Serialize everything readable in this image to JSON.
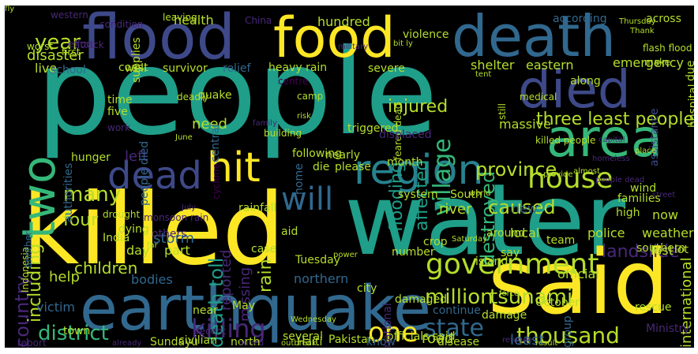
{
  "palette": {
    "yellow": "#fde725",
    "lime": "#b5de2b",
    "green": "#6ece58",
    "sea": "#35b779",
    "teal": "#1f9e89",
    "cyan": "#26828e",
    "blue": "#31688e",
    "indigo": "#3e4989",
    "purple": "#482878",
    "violet": "#440154"
  },
  "words": [
    {
      "text": "people",
      "color": "teal"
    },
    {
      "text": "water",
      "color": "teal"
    },
    {
      "text": "killed",
      "color": "yellow"
    },
    {
      "text": "earthquake",
      "color": "blue"
    },
    {
      "text": "said",
      "color": "yellow"
    },
    {
      "text": "flood",
      "color": "indigo"
    },
    {
      "text": "food",
      "color": "yellow"
    },
    {
      "text": "death",
      "color": "blue"
    },
    {
      "text": "died",
      "color": "indigo"
    },
    {
      "text": "area",
      "color": "sea"
    },
    {
      "text": "two",
      "color": "sea"
    },
    {
      "text": "region",
      "color": "cyan"
    },
    {
      "text": "dead",
      "color": "indigo"
    },
    {
      "text": "hit",
      "color": "yellow"
    },
    {
      "text": "house",
      "color": "lime"
    },
    {
      "text": "will",
      "color": "blue"
    },
    {
      "text": "government",
      "color": "lime"
    },
    {
      "text": "district",
      "color": "sea"
    },
    {
      "text": "thousand",
      "color": "lime"
    },
    {
      "text": "killing",
      "color": "purple"
    },
    {
      "text": "state",
      "color": "blue"
    },
    {
      "text": "one",
      "color": "yellow"
    },
    {
      "text": "village",
      "color": "sea"
    },
    {
      "text": "injured",
      "color": "lime"
    },
    {
      "text": "year",
      "color": "lime"
    },
    {
      "text": "many",
      "color": "lime"
    },
    {
      "text": "country",
      "color": "purple"
    },
    {
      "text": "destroyed",
      "color": "sea"
    },
    {
      "text": "three least people",
      "color": "lime"
    },
    {
      "text": "death toll",
      "color": "teal"
    },
    {
      "text": "province",
      "color": "lime"
    },
    {
      "text": "caused",
      "color": "lime"
    },
    {
      "text": "landslide",
      "color": "purple"
    },
    {
      "text": "million",
      "color": "lime"
    },
    {
      "text": "tsunami",
      "color": "lime"
    },
    {
      "text": "including",
      "color": "lime"
    },
    {
      "text": "four",
      "color": "lime"
    },
    {
      "text": "affected",
      "color": "teal"
    },
    {
      "text": "flooding",
      "color": "teal"
    },
    {
      "text": "rain",
      "color": "lime"
    },
    {
      "text": "disaster",
      "color": "lime"
    },
    {
      "text": "health",
      "color": "lime"
    },
    {
      "text": "live",
      "color": "lime"
    },
    {
      "text": "hundred",
      "color": "lime"
    },
    {
      "text": "need",
      "color": "lime"
    },
    {
      "text": "left",
      "color": "purple"
    },
    {
      "text": "storm",
      "color": "blue"
    },
    {
      "text": "children",
      "color": "lime"
    },
    {
      "text": "bodies",
      "color": "blue"
    },
    {
      "text": "help",
      "color": "lime"
    },
    {
      "text": "victim",
      "color": "blue"
    },
    {
      "text": "river",
      "color": "lime"
    },
    {
      "text": "road",
      "color": "lime"
    },
    {
      "text": "least",
      "color": "blue"
    },
    {
      "text": "northern",
      "color": "blue"
    },
    {
      "text": "missing",
      "color": "purple"
    },
    {
      "text": "reported",
      "color": "purple"
    },
    {
      "text": "part",
      "color": "lime"
    },
    {
      "text": "day",
      "color": "lime"
    },
    {
      "text": "official",
      "color": "lime"
    },
    {
      "text": "international",
      "color": "lime"
    },
    {
      "text": "massive",
      "color": "lime"
    },
    {
      "text": "local",
      "color": "lime"
    },
    {
      "text": "new",
      "color": "blue"
    },
    {
      "text": "police",
      "color": "lime"
    },
    {
      "text": "weather",
      "color": "lime"
    },
    {
      "text": "lost",
      "color": "lime"
    },
    {
      "text": "now",
      "color": "lime"
    },
    {
      "text": "emergency",
      "color": "lime"
    },
    {
      "text": "shelter",
      "color": "lime"
    },
    {
      "text": "eastern",
      "color": "lime"
    },
    {
      "text": "hospital",
      "color": "lime"
    },
    {
      "text": "assistance",
      "color": "indigo"
    },
    {
      "text": "due",
      "color": "lime"
    },
    {
      "text": "according",
      "color": "blue"
    },
    {
      "text": "across",
      "color": "lime"
    },
    {
      "text": "heavy rain",
      "color": "lime"
    },
    {
      "text": "severe",
      "color": "lime"
    },
    {
      "text": "well",
      "color": "lime"
    },
    {
      "text": "survivor",
      "color": "lime"
    },
    {
      "text": "relief",
      "color": "blue"
    },
    {
      "text": "coast",
      "color": "lime"
    },
    {
      "text": "school",
      "color": "blue"
    },
    {
      "text": "quake",
      "color": "lime"
    },
    {
      "text": "central",
      "color": "blue"
    },
    {
      "text": "cyclone",
      "color": "violet"
    },
    {
      "text": "people died",
      "color": "blue"
    },
    {
      "text": "time",
      "color": "lime"
    },
    {
      "text": "five",
      "color": "lime"
    },
    {
      "text": "work",
      "color": "purple"
    },
    {
      "text": "authorities",
      "color": "blue"
    },
    {
      "text": "hunger",
      "color": "lime"
    },
    {
      "text": "home",
      "color": "blue"
    },
    {
      "text": "following",
      "color": "lime"
    },
    {
      "text": "nearly",
      "color": "lime"
    },
    {
      "text": "please",
      "color": "lime"
    },
    {
      "text": "die",
      "color": "lime"
    },
    {
      "text": "rainfall",
      "color": "lime"
    },
    {
      "text": "monsoon rain",
      "color": "purple"
    },
    {
      "text": "drought",
      "color": "lime"
    },
    {
      "text": "dying",
      "color": "lime"
    },
    {
      "text": "others",
      "color": "purple"
    },
    {
      "text": "India",
      "color": "lime"
    },
    {
      "text": "Indonesia",
      "color": "lime"
    },
    {
      "text": "another",
      "color": "blue"
    },
    {
      "text": "aid",
      "color": "lime"
    },
    {
      "text": "case",
      "color": "lime"
    },
    {
      "text": "Tuesday",
      "color": "lime"
    },
    {
      "text": "May",
      "color": "lime"
    },
    {
      "text": "near",
      "color": "lime"
    },
    {
      "text": "recent",
      "color": "purple"
    },
    {
      "text": "civilian",
      "color": "lime"
    },
    {
      "text": "Sunday",
      "color": "lime"
    },
    {
      "text": "u",
      "color": "lime"
    },
    {
      "text": "north",
      "color": "lime"
    },
    {
      "text": "several",
      "color": "lime"
    },
    {
      "text": "Haiti",
      "color": "lime"
    },
    {
      "text": "Pakistan",
      "color": "lime"
    },
    {
      "text": "know",
      "color": "blue"
    },
    {
      "text": "disease",
      "color": "lime"
    },
    {
      "text": "officials said",
      "color": "lime"
    },
    {
      "text": "report",
      "color": "purple"
    },
    {
      "text": "town",
      "color": "lime"
    },
    {
      "text": "damaged",
      "color": "lime"
    },
    {
      "text": "city",
      "color": "lime"
    },
    {
      "text": "continue",
      "color": "blue"
    },
    {
      "text": "number",
      "color": "lime"
    },
    {
      "text": "system",
      "color": "lime"
    },
    {
      "text": "South",
      "color": "lime"
    },
    {
      "text": "crop",
      "color": "lime"
    },
    {
      "text": "island",
      "color": "lime"
    },
    {
      "text": "say",
      "color": "lime"
    },
    {
      "text": "team",
      "color": "lime"
    },
    {
      "text": "around",
      "color": "lime"
    },
    {
      "text": "rescue",
      "color": "lime"
    },
    {
      "text": "group",
      "color": "blue"
    },
    {
      "text": "damage",
      "color": "lime"
    },
    {
      "text": "October",
      "color": "lime"
    },
    {
      "text": "national",
      "color": "purple"
    },
    {
      "text": "Ministry",
      "color": "purple"
    },
    {
      "text": "wind",
      "color": "lime"
    },
    {
      "text": "families",
      "color": "lime"
    },
    {
      "text": "southern",
      "color": "lime"
    },
    {
      "text": "lot",
      "color": "lime"
    },
    {
      "text": "high",
      "color": "lime"
    },
    {
      "text": "along",
      "color": "lime"
    },
    {
      "text": "flash flood",
      "color": "lime"
    },
    {
      "text": "make",
      "color": "lime"
    },
    {
      "text": "medical",
      "color": "lime"
    },
    {
      "text": "still",
      "color": "lime"
    },
    {
      "text": "feared dead",
      "color": "lime"
    },
    {
      "text": "displaced",
      "color": "purple"
    },
    {
      "text": "triggered",
      "color": "lime"
    },
    {
      "text": "month",
      "color": "lime"
    },
    {
      "text": "killed people",
      "color": "lime"
    },
    {
      "text": "violence",
      "color": "lime"
    },
    {
      "text": "attack",
      "color": "purple"
    },
    {
      "text": "first",
      "color": "lime"
    },
    {
      "text": "worst",
      "color": "lime"
    },
    {
      "text": "effort",
      "color": "purple"
    },
    {
      "text": "supplies",
      "color": "lime"
    },
    {
      "text": "China",
      "color": "purple"
    },
    {
      "text": "leaving",
      "color": "lime"
    },
    {
      "text": "condition",
      "color": "purple"
    },
    {
      "text": "western",
      "color": "purple"
    },
    {
      "text": "Thursday",
      "color": "lime"
    },
    {
      "text": "Thank",
      "color": "lime"
    },
    {
      "text": "bit ly",
      "color": "lime"
    },
    {
      "text": "military",
      "color": "purple"
    },
    {
      "text": "tent",
      "color": "lime"
    },
    {
      "text": "centre",
      "color": "violet"
    },
    {
      "text": "camp",
      "color": "lime"
    },
    {
      "text": "risk",
      "color": "lime"
    },
    {
      "text": "deadly",
      "color": "lime"
    },
    {
      "text": "building",
      "color": "lime"
    },
    {
      "text": "family",
      "color": "purple"
    },
    {
      "text": "June",
      "color": "lime"
    },
    {
      "text": "capital",
      "color": "purple"
    },
    {
      "text": "homeless",
      "color": "purple"
    },
    {
      "text": "almost",
      "color": "lime"
    },
    {
      "text": "provide",
      "color": "lime"
    },
    {
      "text": "world",
      "color": "lime"
    },
    {
      "text": "people dead",
      "color": "purple"
    },
    {
      "text": "street",
      "color": "purple"
    },
    {
      "text": "July",
      "color": "purple"
    },
    {
      "text": "far",
      "color": "lime"
    },
    {
      "text": "Saturday",
      "color": "lime"
    },
    {
      "text": "power",
      "color": "lime"
    },
    {
      "text": "Wednesday",
      "color": "lime"
    },
    {
      "text": "already",
      "color": "purple"
    },
    {
      "text": "buried",
      "color": "purple"
    },
    {
      "text": "outbreak",
      "color": "lime"
    },
    {
      "text": "refugee",
      "color": "purple"
    },
    {
      "text": "result",
      "color": "lime"
    },
    {
      "text": "force",
      "color": "lime"
    },
    {
      "text": "place",
      "color": "lime"
    },
    {
      "text": "fly",
      "color": "lime"
    }
  ]
}
